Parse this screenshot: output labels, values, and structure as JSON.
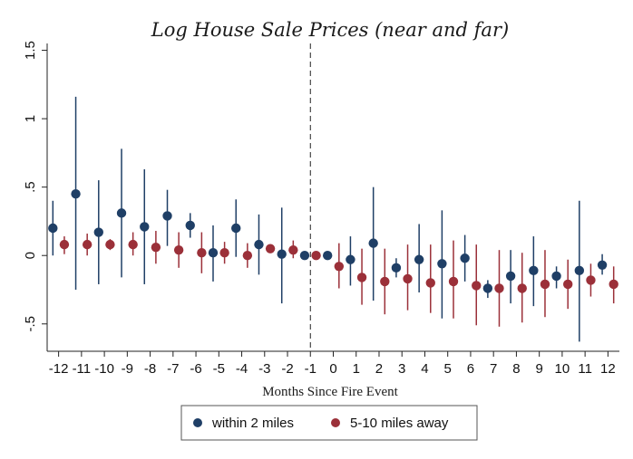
{
  "chart_data": {
    "type": "scatter",
    "title": "Log House Sale Prices  (near and far)",
    "xlabel": "Months Since Fire Event",
    "ylabel": "",
    "categories": [
      "-12",
      "-11",
      "-10",
      "-9",
      "-8",
      "-7",
      "-6",
      "-5",
      "-4",
      "-3",
      "-2",
      "-1",
      "0",
      "1",
      "2",
      "3",
      "4",
      "5",
      "6",
      "7",
      "8",
      "9",
      "10",
      "11",
      "12"
    ],
    "x": [
      -12,
      -11,
      -10,
      -9,
      -8,
      -7,
      -6,
      -5,
      -4,
      -3,
      -2,
      -1,
      0,
      1,
      2,
      3,
      4,
      5,
      6,
      7,
      8,
      9,
      10,
      11,
      12
    ],
    "xlim": [
      -12.5,
      12.5
    ],
    "ylim": [
      -0.7,
      1.55
    ],
    "yticks": [
      1.5,
      1,
      0.5,
      0,
      -0.5
    ],
    "ytick_labels": [
      "1.5",
      "1",
      ".5",
      "0",
      "-.5"
    ],
    "reference_line_x": -1,
    "grid": false,
    "legend_position": "bottom",
    "series": [
      {
        "name": "within 2 miles",
        "color": "#1f3f66",
        "offset": -0.25,
        "values": [
          0.2,
          0.45,
          0.17,
          0.31,
          0.21,
          0.29,
          0.22,
          0.02,
          0.2,
          0.08,
          0.01,
          0.0,
          0.0,
          -0.03,
          0.09,
          -0.09,
          -0.03,
          -0.06,
          -0.02,
          -0.24,
          -0.15,
          -0.11,
          -0.15,
          -0.11,
          -0.07
        ],
        "lower": [
          0.0,
          -0.25,
          -0.21,
          -0.16,
          -0.21,
          0.07,
          0.13,
          -0.19,
          -0.01,
          -0.14,
          -0.35,
          0.0,
          0.0,
          -0.22,
          -0.33,
          -0.16,
          -0.27,
          -0.46,
          -0.19,
          -0.31,
          -0.35,
          -0.37,
          -0.24,
          -0.63,
          -0.14
        ],
        "upper": [
          0.4,
          1.16,
          0.55,
          0.78,
          0.63,
          0.48,
          0.31,
          0.22,
          0.41,
          0.3,
          0.35,
          0.0,
          0.0,
          0.14,
          0.5,
          -0.02,
          0.23,
          0.33,
          0.15,
          -0.18,
          0.04,
          0.14,
          -0.08,
          0.4,
          0.01
        ]
      },
      {
        "name": "5-10 miles away",
        "color": "#9b3039",
        "offset": 0.25,
        "values": [
          0.08,
          0.08,
          0.08,
          0.08,
          0.06,
          0.04,
          0.02,
          0.02,
          0.0,
          0.05,
          0.04,
          0.0,
          -0.08,
          -0.16,
          -0.19,
          -0.17,
          -0.2,
          -0.19,
          -0.22,
          -0.24,
          -0.24,
          -0.21,
          -0.21,
          -0.18,
          -0.21
        ],
        "lower": [
          0.01,
          0.0,
          0.04,
          0.0,
          -0.06,
          -0.09,
          -0.13,
          -0.06,
          -0.09,
          0.02,
          -0.02,
          0.0,
          -0.24,
          -0.36,
          -0.43,
          -0.4,
          -0.42,
          -0.46,
          -0.51,
          -0.52,
          -0.49,
          -0.45,
          -0.39,
          -0.3,
          -0.35
        ],
        "upper": [
          0.14,
          0.16,
          0.12,
          0.17,
          0.18,
          0.17,
          0.17,
          0.1,
          0.09,
          0.08,
          0.11,
          0.0,
          0.09,
          0.05,
          0.05,
          0.08,
          0.08,
          0.11,
          0.08,
          0.04,
          0.02,
          0.04,
          -0.03,
          -0.06,
          -0.08
        ]
      }
    ]
  }
}
